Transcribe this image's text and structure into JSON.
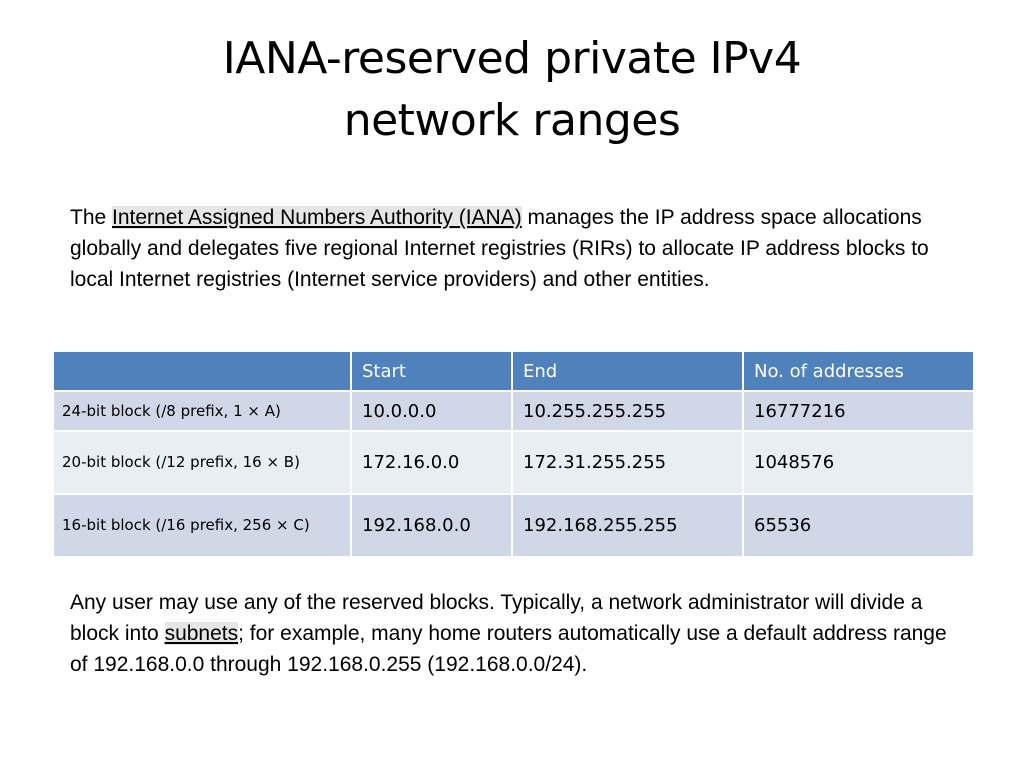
{
  "title": {
    "line1": "IANA-reserved private IPv4",
    "line2": "network ranges"
  },
  "intro": {
    "prefix": "The ",
    "link": "Internet Assigned Numbers Authority (IANA)",
    "rest": " manages the IP address space allocations globally and delegates five regional Internet registries (RIRs) to allocate IP address blocks to local Internet registries (Internet service providers) and other entities."
  },
  "table": {
    "headers": [
      "",
      "Start",
      "End",
      "No. of addresses"
    ],
    "rows": [
      {
        "label": "24-bit block (/8 prefix, 1 × A)",
        "start": "10.0.0.0",
        "end": "10.255.255.255",
        "count": "16777216"
      },
      {
        "label": "20-bit block (/12 prefix, 16 × B)",
        "start": "172.16.0.0",
        "end": "172.31.255.255",
        "count": "1048576"
      },
      {
        "label": "16-bit block (/16 prefix, 256 × C)",
        "start": "192.168.0.0",
        "end": "192.168.255.255",
        "count": "65536"
      }
    ]
  },
  "outro": {
    "before": "Any user may use any of the reserved blocks. Typically, a network administrator will divide a block into ",
    "link": "subnets",
    "after": "; for example, many home routers automatically use a default address range of 192.168.0.0 through 192.168.0.255 (192.168.0.0/24)."
  },
  "colors": {
    "header_bg": "#4f81bd",
    "row_odd_bg": "#d0d8e8",
    "row_even_bg": "#e9edf4",
    "link_highlight": "#e6e6e6"
  }
}
